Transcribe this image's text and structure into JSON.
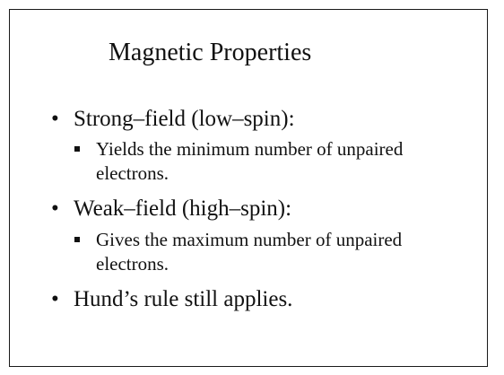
{
  "slide": {
    "title": "Magnetic Properties",
    "bullet_char": "•",
    "items": [
      {
        "text": "Strong–field (low–spin):",
        "sub": "Yields the minimum number of unpaired electrons."
      },
      {
        "text": "Weak–field (high–spin):",
        "sub": "Gives the maximum number of unpaired electrons."
      },
      {
        "text": "Hund’s rule still applies."
      }
    ]
  }
}
